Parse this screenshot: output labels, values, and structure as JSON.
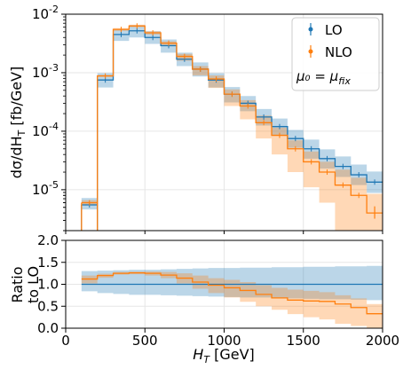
{
  "chart_data": [
    {
      "type": "line",
      "panel": "main",
      "x_edges": [
        100,
        200,
        300,
        400,
        500,
        600,
        700,
        800,
        900,
        1000,
        1100,
        1200,
        1300,
        1400,
        1500,
        1600,
        1700,
        1800,
        1900,
        2000
      ],
      "x_centers": [
        150,
        250,
        350,
        450,
        550,
        650,
        750,
        850,
        950,
        1050,
        1150,
        1250,
        1350,
        1450,
        1550,
        1650,
        1750,
        1850,
        1950
      ],
      "xlim": [
        0,
        2000
      ],
      "y_scale": "log",
      "ylim": [
        2e-06,
        0.01
      ],
      "y_tick_labels": [
        "10$^{-5}$",
        "10$^{-4}$",
        "10$^{-3}$",
        "10$^{-2}$"
      ],
      "y_tick_values": [
        1e-05,
        0.0001,
        0.001,
        0.01
      ],
      "ylabel_main": "dσ/dH",
      "ylabel_sub": "T",
      "ylabel_unit": " [fb/GeV]",
      "grid": true,
      "legend_placement": "top-right",
      "legend_note": "μ₀ = μ",
      "legend_note_sub": "fix",
      "series": [
        {
          "name": "LO",
          "color": "#1f77b4",
          "values": [
            5.5e-06,
            0.00075,
            0.0045,
            0.0052,
            0.004,
            0.0029,
            0.0017,
            0.00115,
            0.00075,
            0.00043,
            0.0003,
            0.000175,
            0.00012,
            7.5e-05,
            5e-05,
            3.4e-05,
            2.5e-05,
            1.8e-05,
            1.35e-05
          ],
          "band_low": [
            4.6e-06,
            0.00056,
            0.0035,
            0.004,
            0.0031,
            0.0022,
            0.0013,
            0.00086,
            0.00056,
            0.00031,
            0.00022,
            0.000125,
            8.5e-05,
            5.2e-05,
            3.4e-05,
            2.3e-05,
            1.65e-05,
            1.2e-05,
            8.8e-06
          ],
          "band_high": [
            7.2e-06,
            0.00098,
            0.0055,
            0.0065,
            0.0051,
            0.0037,
            0.0022,
            0.0015,
            0.00098,
            0.00057,
            0.0004,
            0.00024,
            0.000165,
            0.000105,
            7.2e-05,
            4.9e-05,
            3.7e-05,
            2.7e-05,
            2.05e-05
          ]
        },
        {
          "name": "NLO",
          "color": "#ff7f0e",
          "values": [
            6e-06,
            0.00088,
            0.0055,
            0.0063,
            0.0048,
            0.0032,
            0.0019,
            0.00115,
            0.00078,
            0.00043,
            0.00027,
            0.00014,
            8.5e-05,
            5e-05,
            3e-05,
            2e-05,
            1.2e-05,
            8e-06,
            4e-06
          ],
          "band_low": [
            5.4e-06,
            0.00085,
            0.0052,
            0.006,
            0.0045,
            0.0029,
            0.0016,
            0.0009,
            0.00055,
            0.00027,
            0.00016,
            7.5e-05,
            4e-05,
            2e-05,
            1.1e-05,
            6e-06,
            2e-06,
            2e-06,
            2e-06
          ],
          "band_high": [
            6.6e-06,
            0.00092,
            0.0058,
            0.0066,
            0.0051,
            0.00345,
            0.0021,
            0.0013,
            0.0009,
            0.00052,
            0.00034,
            0.000185,
            0.000115,
            7e-05,
            4.5e-05,
            3e-05,
            2.2e-05,
            1.6e-05,
            8.5e-06
          ]
        }
      ]
    },
    {
      "type": "line",
      "panel": "ratio",
      "x_edges": [
        100,
        200,
        300,
        400,
        500,
        600,
        700,
        800,
        900,
        1000,
        1100,
        1200,
        1300,
        1400,
        1500,
        1600,
        1700,
        1800,
        1900,
        2000
      ],
      "xlim": [
        0,
        2000
      ],
      "ylim": [
        0.0,
        2.0
      ],
      "y_tick_labels": [
        "0.0",
        "0.5",
        "1.0",
        "1.5",
        "2.0"
      ],
      "y_tick_values": [
        0.0,
        0.5,
        1.0,
        1.5,
        2.0
      ],
      "x_tick_labels": [
        "0",
        "500",
        "1000",
        "1500",
        "2000"
      ],
      "x_tick_values": [
        0,
        500,
        1000,
        1500,
        2000
      ],
      "xlabel": "H",
      "xlabel_sub": "T",
      "xlabel_unit": "  [GeV]",
      "ylabel_line1": "Ratio",
      "ylabel_line2": "to LO",
      "series": [
        {
          "name": "LO",
          "color": "#1f77b4",
          "values": [
            1.0,
            1.0,
            1.0,
            1.0,
            1.0,
            1.0,
            1.0,
            1.0,
            1.0,
            1.0,
            1.0,
            1.0,
            1.0,
            1.0,
            1.0,
            1.0,
            1.0,
            1.0,
            1.0
          ],
          "band_low": [
            0.84,
            0.8,
            0.78,
            0.76,
            0.76,
            0.75,
            0.74,
            0.73,
            0.72,
            0.71,
            0.7,
            0.7,
            0.69,
            0.68,
            0.67,
            0.66,
            0.66,
            0.65,
            0.64
          ],
          "band_high": [
            1.3,
            1.31,
            1.32,
            1.33,
            1.33,
            1.34,
            1.35,
            1.36,
            1.37,
            1.37,
            1.38,
            1.38,
            1.39,
            1.39,
            1.4,
            1.4,
            1.41,
            1.41,
            1.42
          ]
        },
        {
          "name": "NLO",
          "color": "#ff7f0e",
          "values": [
            1.12,
            1.2,
            1.25,
            1.26,
            1.25,
            1.21,
            1.14,
            1.05,
            0.98,
            0.92,
            0.86,
            0.77,
            0.69,
            0.64,
            0.62,
            0.61,
            0.55,
            0.47,
            0.33
          ],
          "band_low": [
            1.02,
            1.15,
            1.22,
            1.23,
            1.2,
            1.14,
            1.02,
            0.9,
            0.8,
            0.7,
            0.6,
            0.5,
            0.42,
            0.32,
            0.25,
            0.2,
            0.1,
            0.05,
            0.0
          ],
          "band_high": [
            1.2,
            1.24,
            1.28,
            1.29,
            1.29,
            1.28,
            1.25,
            1.2,
            1.14,
            1.1,
            1.05,
            0.98,
            0.92,
            0.88,
            0.85,
            0.82,
            0.75,
            0.68,
            0.55
          ]
        }
      ]
    }
  ]
}
